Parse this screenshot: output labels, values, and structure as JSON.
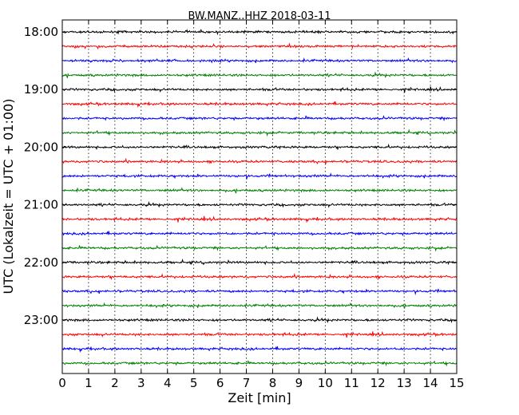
{
  "chart_data": {
    "type": "line",
    "title": "BW.MANZ..HHZ 2018-03-11",
    "xlabel": "Zeit  [min]",
    "ylabel": "UTC (Lokalzeit = UTC + 01:00)",
    "xlim": [
      0,
      15
    ],
    "x_ticks": [
      "0",
      "1",
      "2",
      "3",
      "4",
      "5",
      "6",
      "7",
      "8",
      "9",
      "10",
      "11",
      "12",
      "13",
      "14",
      "15"
    ],
    "y_ticks": [
      "18:00",
      "19:00",
      "20:00",
      "21:00",
      "22:00",
      "23:00"
    ],
    "grid": "vertical dotted",
    "trace_interval_minutes": 15,
    "trace_colors": [
      "#000000",
      "#ff0000",
      "#0000ff",
      "#008000"
    ],
    "traces": [
      {
        "start": "18:00"
      },
      {
        "start": "18:15"
      },
      {
        "start": "18:30"
      },
      {
        "start": "18:45"
      },
      {
        "start": "19:00"
      },
      {
        "start": "19:15"
      },
      {
        "start": "19:30"
      },
      {
        "start": "19:45"
      },
      {
        "start": "20:00"
      },
      {
        "start": "20:15"
      },
      {
        "start": "20:30"
      },
      {
        "start": "20:45"
      },
      {
        "start": "21:00"
      },
      {
        "start": "21:15"
      },
      {
        "start": "21:30"
      },
      {
        "start": "21:45"
      },
      {
        "start": "22:00"
      },
      {
        "start": "22:15"
      },
      {
        "start": "22:30"
      },
      {
        "start": "22:45"
      },
      {
        "start": "23:00"
      },
      {
        "start": "23:15"
      },
      {
        "start": "23:30"
      },
      {
        "start": "23:45"
      }
    ]
  }
}
